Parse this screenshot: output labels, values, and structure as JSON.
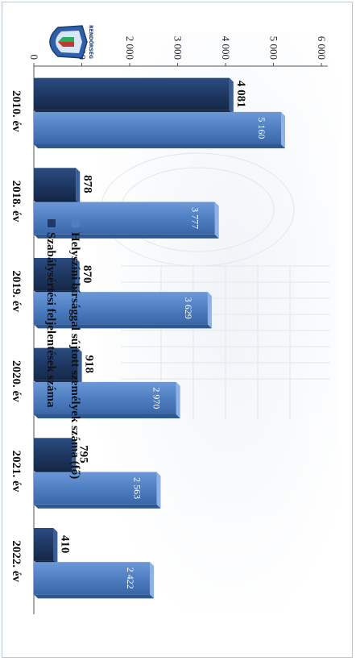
{
  "chart_data": {
    "type": "bar",
    "orientation": "vertical, image rotated 90° clockwise",
    "categories": [
      "2010. év",
      "2018. év",
      "2019. év",
      "2020. év",
      "2021. év",
      "2022. év"
    ],
    "series": [
      {
        "name": "Szabálysértési feljelentések száma",
        "values": [
          4081,
          878,
          870,
          918,
          795,
          410
        ],
        "labels": [
          "4 081",
          "878",
          "870",
          "918",
          "795",
          "410"
        ],
        "color": "#1f3864"
      },
      {
        "name": "Helyszíni bírsággal sújtott személyek száma (fő)",
        "values": [
          5160,
          3777,
          3629,
          2970,
          2563,
          2422
        ],
        "labels": [
          "5 160",
          "3 777",
          "3 629",
          "2 970",
          "2 563",
          "2 422"
        ],
        "color": "#4f7fc2"
      }
    ],
    "y_ticks": [
      0,
      1000,
      2000,
      3000,
      4000,
      5000,
      6000
    ],
    "y_tick_labels": [
      "0",
      "1 000",
      "2 000",
      "3 000",
      "4 000",
      "5 000",
      "6 000"
    ],
    "ylim": [
      0,
      6000
    ],
    "legend_position": "top",
    "grid": false
  },
  "colors": {
    "dark_bar": "#1f3864",
    "light_bar": "#4f7fc2",
    "axis": "#555555"
  },
  "logo": {
    "icon": "police-badge-icon",
    "text": "RENDŐRSÉG"
  }
}
